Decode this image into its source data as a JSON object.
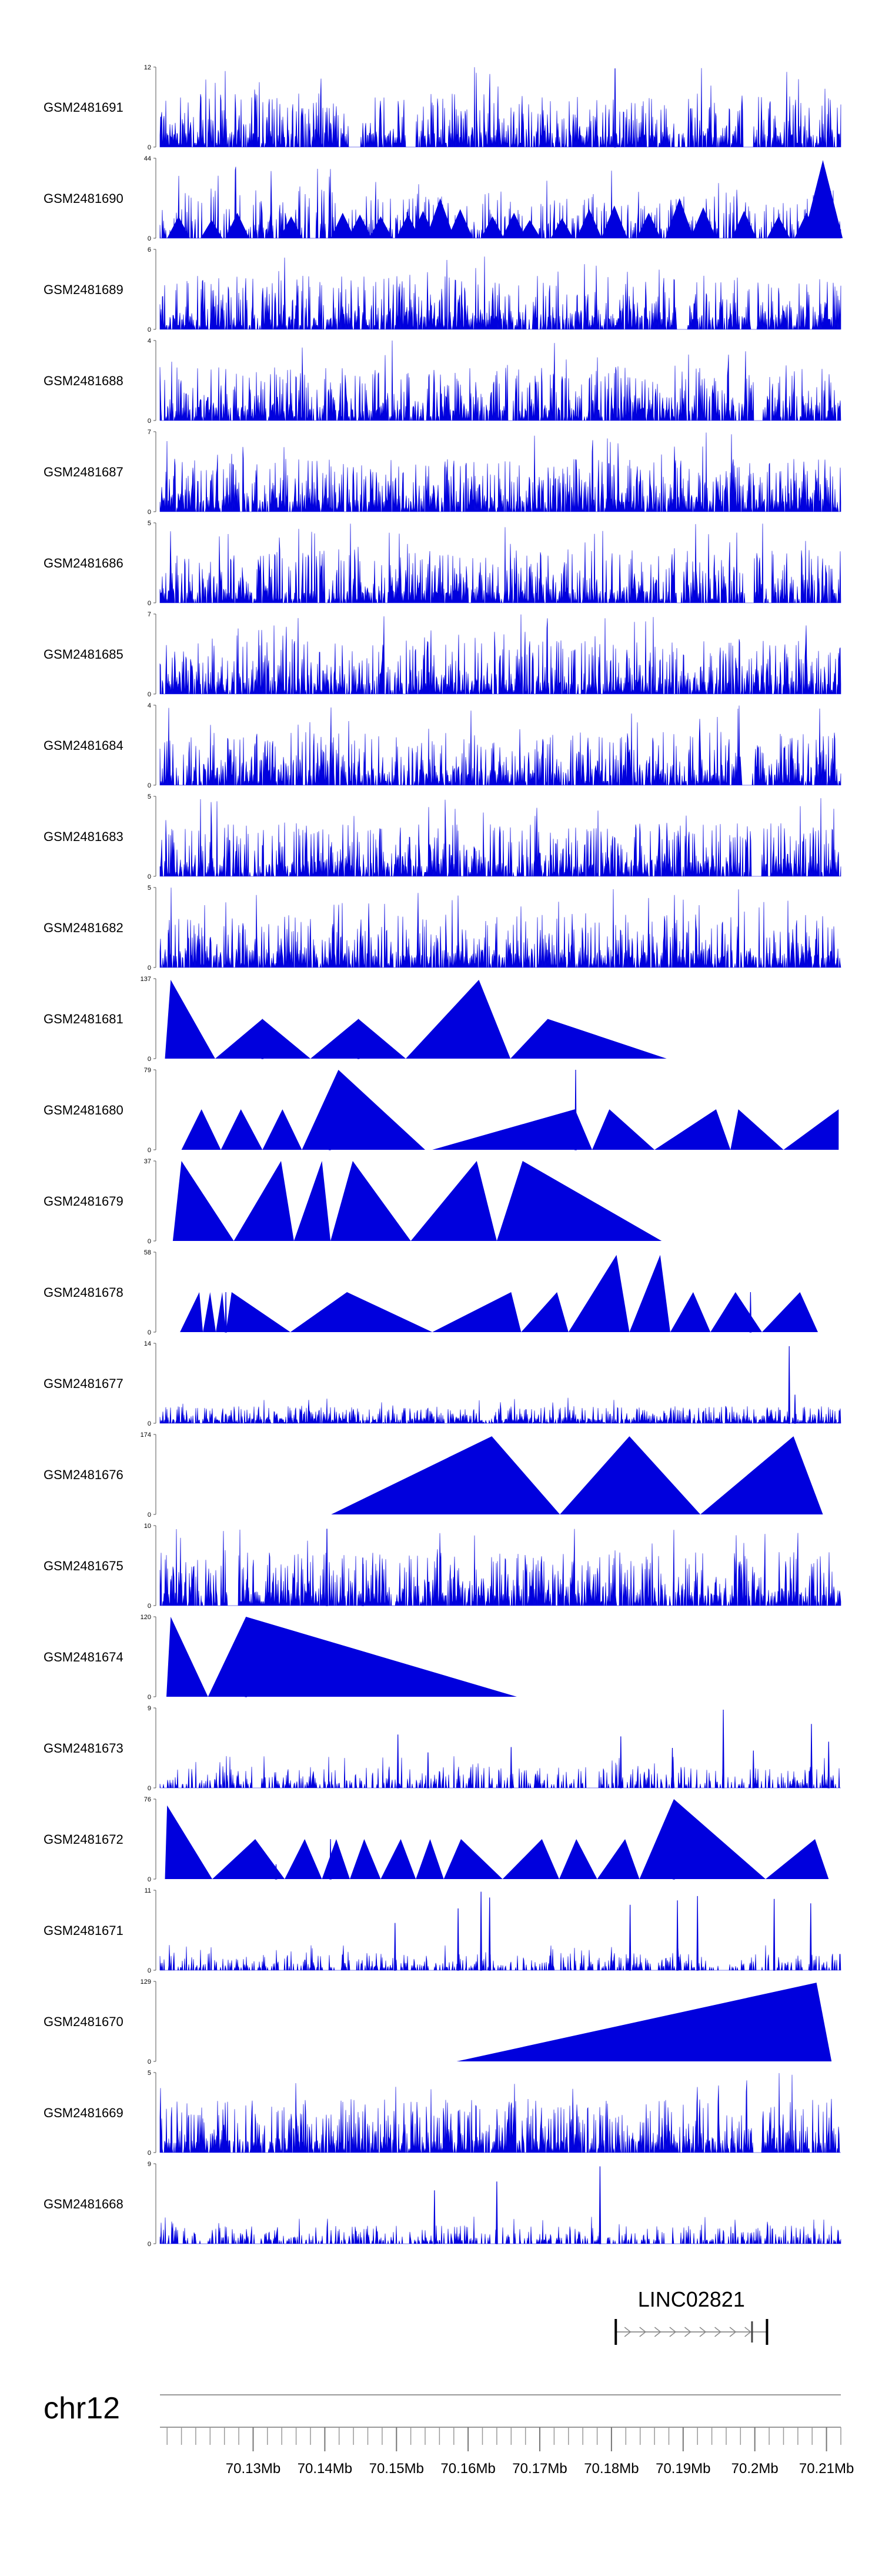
{
  "chart_data": {
    "type": "area",
    "title": "",
    "chromosome": "chr12",
    "genomic_range_mb": [
      70.117,
      70.212
    ],
    "x_ticks_mb": [
      70.13,
      70.14,
      70.15,
      70.16,
      70.17,
      70.18,
      70.19,
      70.2,
      70.21
    ],
    "x_tick_labels": [
      "70.13Mb",
      "70.14Mb",
      "70.15Mb",
      "70.16Mb",
      "70.17Mb",
      "70.18Mb",
      "70.19Mb",
      "70.2Mb",
      "70.21Mb"
    ],
    "gene": {
      "name": "LINC02821",
      "start_mb": 70.1806,
      "end_mb": 70.2017,
      "strand": "+"
    },
    "color": "#0000dd",
    "tracks": [
      {
        "name": "GSM2481691",
        "ymax": 12,
        "style": "dense",
        "seed": 11,
        "spikes": [
          [
            70.1805,
            11.8
          ]
        ],
        "gaps": [
          [
            70.1435,
            70.1448
          ],
          [
            70.1513,
            70.1527
          ],
          [
            70.1983,
            70.1997
          ]
        ]
      },
      {
        "name": "GSM2481690",
        "ymax": 44,
        "style": "sparse",
        "seed": 23,
        "peaks": [
          [
            70.1196,
            12
          ],
          [
            70.1242,
            10
          ],
          [
            70.1278,
            14
          ],
          [
            70.1353,
            12
          ],
          [
            70.1425,
            14
          ],
          [
            70.1449,
            13
          ],
          [
            70.1478,
            12
          ],
          [
            70.1516,
            13
          ],
          [
            70.1537,
            15
          ],
          [
            70.1561,
            22
          ],
          [
            70.1589,
            16
          ],
          [
            70.1634,
            12
          ],
          [
            70.1664,
            14
          ],
          [
            70.1686,
            10
          ],
          [
            70.1731,
            11
          ],
          [
            70.1769,
            16
          ],
          [
            70.1804,
            18
          ],
          [
            70.1852,
            14
          ],
          [
            70.1895,
            22
          ],
          [
            70.1928,
            17
          ],
          [
            70.1985,
            15
          ],
          [
            70.2033,
            12
          ],
          [
            70.2072,
            14
          ],
          [
            70.2095,
            43
          ]
        ]
      },
      {
        "name": "GSM2481689",
        "ymax": 6,
        "style": "dense",
        "seed": 37,
        "gaps": [
          [
            70.1891,
            70.1905
          ],
          [
            70.1994,
            70.2003
          ]
        ]
      },
      {
        "name": "GSM2481688",
        "ymax": 4,
        "style": "dense",
        "seed": 41,
        "gaps": [
          [
            70.1998,
            70.2011
          ]
        ]
      },
      {
        "name": "GSM2481687",
        "ymax": 7,
        "style": "dense",
        "seed": 53,
        "gaps": []
      },
      {
        "name": "GSM2481686",
        "ymax": 5,
        "style": "dense",
        "seed": 67,
        "gaps": [
          [
            70.1986,
            70.1999
          ]
        ]
      },
      {
        "name": "GSM2481685",
        "ymax": 7,
        "style": "dense",
        "seed": 71,
        "gaps": []
      },
      {
        "name": "GSM2481684",
        "ymax": 4,
        "style": "dense",
        "seed": 83,
        "gaps": [
          [
            70.1982,
            70.1996
          ]
        ]
      },
      {
        "name": "GSM2481683",
        "ymax": 5,
        "style": "dense",
        "seed": 97,
        "gaps": [
          [
            70.1996,
            70.2008
          ]
        ]
      },
      {
        "name": "GSM2481682",
        "ymax": 5,
        "style": "dense",
        "seed": 101,
        "gaps": []
      },
      {
        "name": "GSM2481681",
        "ymax": 137,
        "style": "triangles",
        "triangles": [
          [
            70.1177,
            70.1185,
            70.1247,
            135
          ],
          [
            70.1247,
            70.1313,
            70.138,
            68
          ],
          [
            70.138,
            70.1447,
            70.1513,
            68
          ],
          [
            70.1513,
            70.1615,
            70.1659,
            135
          ],
          [
            70.1659,
            70.1711,
            70.1877,
            68
          ]
        ],
        "spikes": [
          [
            70.1313,
            68
          ],
          [
            70.1447,
            68
          ]
        ]
      },
      {
        "name": "GSM2481680",
        "ymax": 79,
        "style": "triangles",
        "triangles": [
          [
            70.12,
            70.1228,
            70.1255,
            40
          ],
          [
            70.1255,
            70.1283,
            70.1313,
            40
          ],
          [
            70.1313,
            70.1341,
            70.1368,
            40
          ],
          [
            70.1368,
            70.1419,
            70.154,
            79
          ],
          [
            70.155,
            70.1749,
            70.1773,
            40
          ],
          [
            70.1773,
            70.1797,
            70.186,
            40
          ],
          [
            70.186,
            70.1946,
            70.1966,
            40
          ],
          [
            70.1966,
            70.1977,
            70.204,
            40
          ],
          [
            70.204,
            70.2117,
            70.2117,
            40
          ]
        ],
        "spikes": [
          [
            70.1407,
            40
          ],
          [
            70.175,
            79
          ]
        ]
      },
      {
        "name": "GSM2481679",
        "ymax": 37,
        "style": "triangles",
        "triangles": [
          [
            70.1188,
            70.12,
            70.1273,
            37
          ],
          [
            70.1273,
            70.1339,
            70.1357,
            37
          ],
          [
            70.1357,
            70.1396,
            70.1408,
            37
          ],
          [
            70.1408,
            70.1439,
            70.152,
            37
          ],
          [
            70.152,
            70.1612,
            70.164,
            37
          ],
          [
            70.164,
            70.1676,
            70.187,
            37
          ]
        ]
      },
      {
        "name": "GSM2481678",
        "ymax": 58,
        "style": "triangles",
        "triangles": [
          [
            70.1198,
            70.1225,
            70.123,
            29
          ],
          [
            70.123,
            70.124,
            70.1248,
            29
          ],
          [
            70.1248,
            70.1257,
            70.1262,
            29
          ],
          [
            70.1262,
            70.127,
            70.1352,
            29
          ],
          [
            70.1352,
            70.1431,
            70.155,
            29
          ],
          [
            70.155,
            70.166,
            70.1674,
            29
          ],
          [
            70.1674,
            70.1724,
            70.174,
            29
          ],
          [
            70.174,
            70.1807,
            70.1825,
            56
          ],
          [
            70.1825,
            70.1868,
            70.1882,
            56
          ],
          [
            70.1882,
            70.1914,
            70.1938,
            29
          ],
          [
            70.1938,
            70.1973,
            70.201,
            29
          ],
          [
            70.201,
            70.2063,
            70.2088,
            29
          ]
        ],
        "spikes": [
          [
            70.1262,
            29
          ],
          [
            70.1994,
            29
          ]
        ]
      },
      {
        "name": "GSM2481677",
        "ymax": 14,
        "style": "dense",
        "seed": 113,
        "scale": 0.32,
        "spikes": [
          [
            70.2048,
            13.5
          ],
          [
            70.2056,
            5
          ]
        ],
        "gaps": []
      },
      {
        "name": "GSM2481676",
        "ymax": 174,
        "style": "triangles",
        "triangles": [
          [
            70.1409,
            70.1633,
            70.1728,
            170
          ],
          [
            70.1728,
            70.1825,
            70.1924,
            170
          ],
          [
            70.1924,
            70.2054,
            70.2095,
            170
          ]
        ]
      },
      {
        "name": "GSM2481675",
        "ymax": 10,
        "style": "dense",
        "seed": 127,
        "spikes": [
          [
            70.1403,
            9.6
          ],
          [
            70.1453,
            6
          ]
        ],
        "gaps": [
          [
            70.1264,
            70.1278
          ]
        ]
      },
      {
        "name": "GSM2481674",
        "ymax": 120,
        "style": "triangles",
        "triangles": [
          [
            70.1179,
            70.1185,
            70.1237,
            120
          ],
          [
            70.1237,
            70.129,
            70.1668,
            120
          ]
        ],
        "spikes": [
          [
            70.129,
            60
          ]
        ]
      },
      {
        "name": "GSM2481673",
        "ymax": 9,
        "style": "sparse",
        "seed": 131,
        "scale": 0.45,
        "spikes": [
          [
            70.1502,
            6
          ],
          [
            70.1544,
            4
          ],
          [
            70.166,
            4.6
          ],
          [
            70.1813,
            5.8
          ],
          [
            70.1885,
            4.5
          ],
          [
            70.1956,
            8.8
          ],
          [
            70.1998,
            4.2
          ],
          [
            70.2079,
            7.2
          ],
          [
            70.2103,
            5.2
          ]
        ]
      },
      {
        "name": "GSM2481672",
        "ymax": 76,
        "style": "triangles",
        "triangles": [
          [
            70.1177,
            70.118,
            70.1243,
            70
          ],
          [
            70.1243,
            70.1303,
            70.1344,
            38
          ],
          [
            70.1344,
            70.1372,
            70.1396,
            38
          ],
          [
            70.1396,
            70.1416,
            70.1435,
            38
          ],
          [
            70.1435,
            70.1455,
            70.1478,
            38
          ],
          [
            70.1478,
            70.1506,
            70.1527,
            38
          ],
          [
            70.1527,
            70.1547,
            70.1566,
            38
          ],
          [
            70.1566,
            70.159,
            70.1648,
            38
          ],
          [
            70.1648,
            70.1703,
            70.1727,
            38
          ],
          [
            70.1727,
            70.1751,
            70.178,
            38
          ],
          [
            70.178,
            70.1819,
            70.1839,
            38
          ],
          [
            70.1839,
            70.1887,
            70.2015,
            76
          ],
          [
            70.2015,
            70.2084,
            70.2103,
            38
          ]
        ],
        "spikes": [
          [
            70.1332,
            14
          ],
          [
            70.1408,
            38
          ],
          [
            70.1887,
            42
          ]
        ]
      },
      {
        "name": "GSM2481671",
        "ymax": 11,
        "style": "sparse",
        "seed": 139,
        "scale": 0.36,
        "spikes": [
          [
            70.1498,
            6.5
          ],
          [
            70.1586,
            8.5
          ],
          [
            70.1618,
            10.8
          ],
          [
            70.163,
            10
          ],
          [
            70.1826,
            9
          ],
          [
            70.1892,
            9.6
          ],
          [
            70.192,
            10.2
          ],
          [
            70.2027,
            9.8
          ],
          [
            70.2078,
            9.2
          ]
        ]
      },
      {
        "name": "GSM2481670",
        "ymax": 129,
        "style": "triangles",
        "triangles": [
          [
            70.1584,
            70.2086,
            70.2107,
            127
          ]
        ]
      },
      {
        "name": "GSM2481669",
        "ymax": 5,
        "style": "dense",
        "seed": 149,
        "gaps": [
          [
            70.1997,
            70.201
          ]
        ]
      },
      {
        "name": "GSM2481668",
        "ymax": 9,
        "style": "sparse",
        "seed": 157,
        "scale": 0.38,
        "spikes": [
          [
            70.1784,
            8.7
          ],
          [
            70.1553,
            6
          ],
          [
            70.164,
            7
          ]
        ]
      }
    ]
  }
}
